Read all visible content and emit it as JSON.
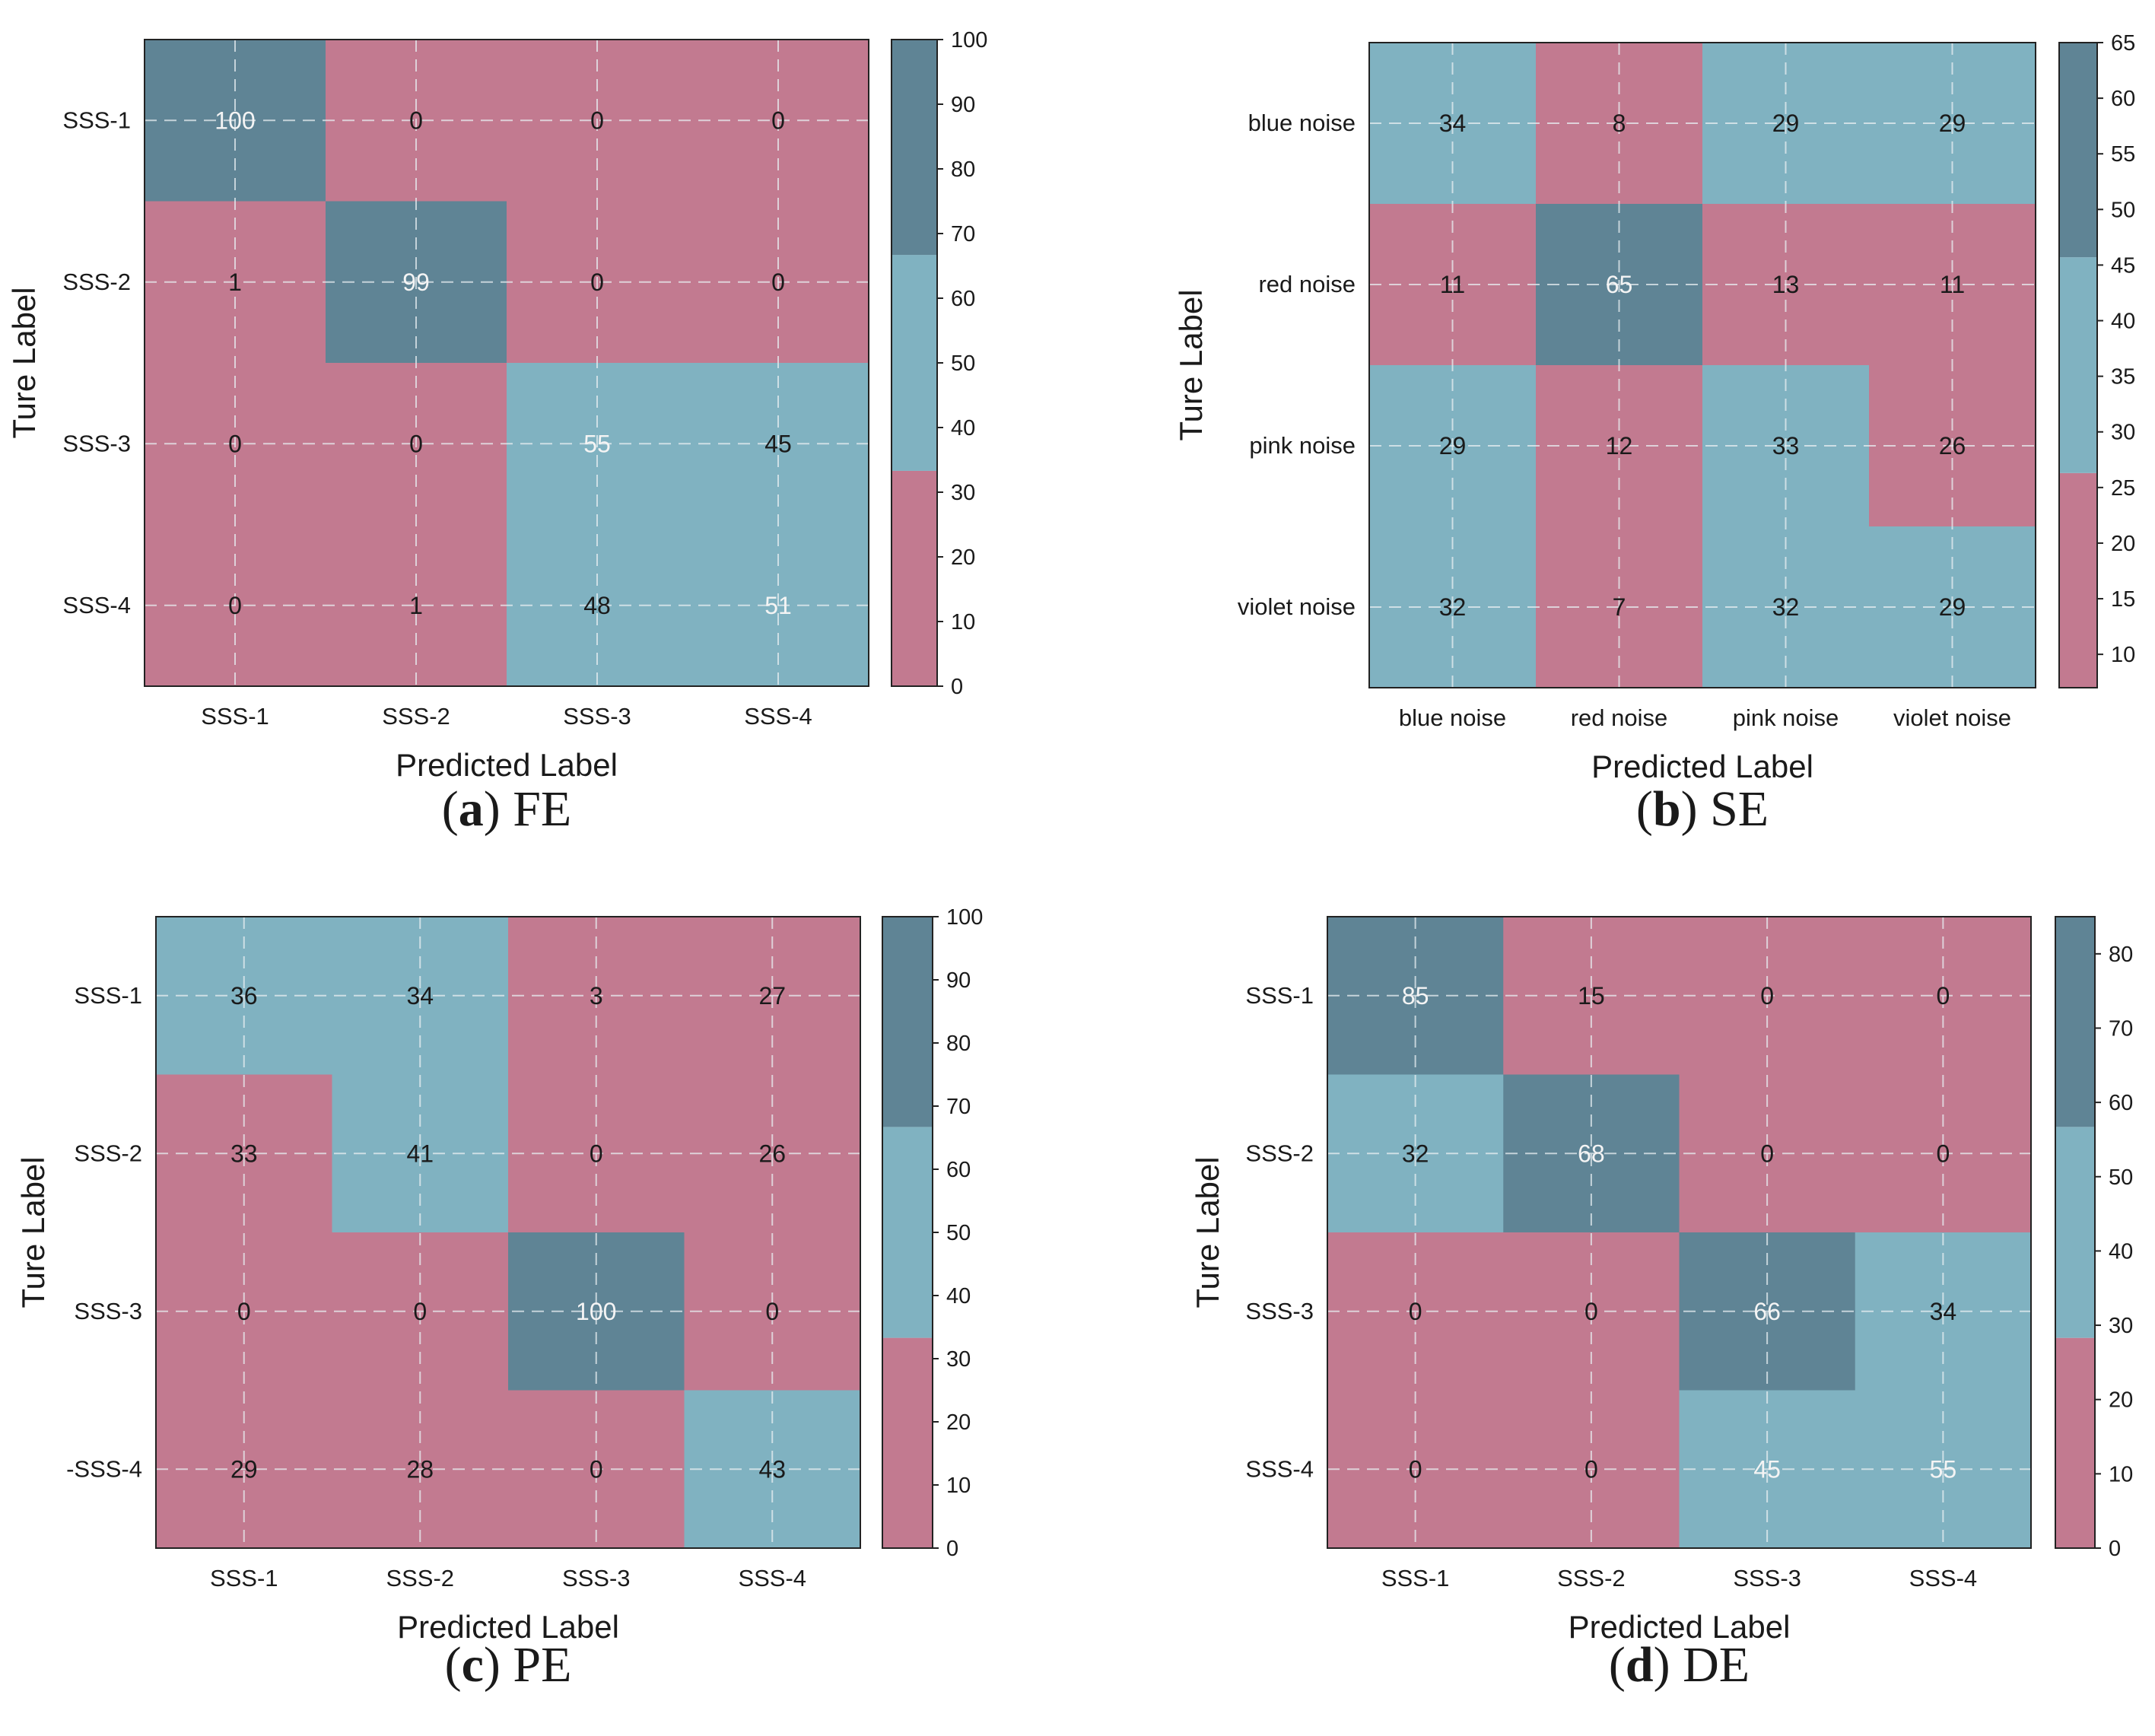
{
  "colors": {
    "low": "#c27a90",
    "mid": "#80b2c1",
    "high": "#5f8495",
    "grid": "#e8eef2",
    "frame": "#222222"
  },
  "chart_data": [
    {
      "type": "heatmap",
      "caption": {
        "letter": "a",
        "text": "FE"
      },
      "xlabel": "Predicted Label",
      "ylabel": "Ture Label",
      "x_categories": [
        "SSS-1",
        "SSS-2",
        "SSS-3",
        "SSS-4"
      ],
      "y_categories": [
        "SSS-1",
        "SSS-2",
        "SSS-3",
        "SSS-4"
      ],
      "values": [
        [
          100,
          0,
          0,
          0
        ],
        [
          1,
          99,
          0,
          0
        ],
        [
          0,
          0,
          55,
          45
        ],
        [
          0,
          1,
          48,
          51
        ]
      ],
      "colorbar": {
        "min": 0,
        "max": 100,
        "low_max": 33.3,
        "mid_max": 66.7,
        "ticks": [
          0,
          10,
          20,
          30,
          40,
          50,
          60,
          70,
          80,
          90,
          100
        ]
      }
    },
    {
      "type": "heatmap",
      "caption": {
        "letter": "b",
        "text": "SE"
      },
      "xlabel": "Predicted Label",
      "ylabel": "Ture Label",
      "x_categories": [
        "blue noise",
        "red noise",
        "pink noise",
        "violet noise"
      ],
      "y_categories": [
        "blue noise",
        "red noise",
        "pink noise",
        "violet noise"
      ],
      "values": [
        [
          34,
          8,
          29,
          29
        ],
        [
          11,
          65,
          13,
          11
        ],
        [
          29,
          12,
          33,
          26
        ],
        [
          32,
          7,
          32,
          29
        ]
      ],
      "colorbar": {
        "min": 7,
        "max": 65,
        "low_max": 26.3,
        "mid_max": 45.7,
        "ticks": [
          10,
          15,
          20,
          25,
          30,
          35,
          40,
          45,
          50,
          55,
          60,
          65
        ]
      }
    },
    {
      "type": "heatmap",
      "caption": {
        "letter": "c",
        "text": "PE"
      },
      "xlabel": "Predicted Label",
      "ylabel": "Ture Label",
      "x_categories": [
        "SSS-1",
        "SSS-2",
        "SSS-3",
        "SSS-4"
      ],
      "y_categories": [
        "SSS-1",
        "SSS-2",
        "SSS-3",
        "-SSS-4"
      ],
      "values": [
        [
          36,
          34,
          3,
          27
        ],
        [
          33,
          41,
          0,
          26
        ],
        [
          0,
          0,
          100,
          0
        ],
        [
          29,
          28,
          0,
          43
        ]
      ],
      "colorbar": {
        "min": 0,
        "max": 100,
        "low_max": 33.3,
        "mid_max": 66.7,
        "ticks": [
          0,
          10,
          20,
          30,
          40,
          50,
          60,
          70,
          80,
          90,
          100
        ]
      }
    },
    {
      "type": "heatmap",
      "caption": {
        "letter": "d",
        "text": "DE"
      },
      "xlabel": "Predicted Label",
      "ylabel": "Ture Label",
      "x_categories": [
        "SSS-1",
        "SSS-2",
        "SSS-3",
        "SSS-4"
      ],
      "y_categories": [
        "SSS-1",
        "SSS-2",
        "SSS-3",
        "SSS-4"
      ],
      "values": [
        [
          85,
          15,
          0,
          0
        ],
        [
          32,
          68,
          0,
          0
        ],
        [
          0,
          0,
          66,
          34
        ],
        [
          0,
          0,
          45,
          55
        ]
      ],
      "colorbar": {
        "min": 0,
        "max": 85,
        "low_max": 28.3,
        "mid_max": 56.7,
        "ticks": [
          0,
          10,
          20,
          30,
          40,
          50,
          60,
          70,
          80
        ]
      }
    }
  ]
}
